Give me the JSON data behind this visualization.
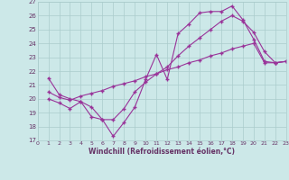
{
  "xlabel": "Windchill (Refroidissement éolien,°C)",
  "background_color": "#cce8e8",
  "grid_color": "#aacccc",
  "line_color": "#993399",
  "xmin": 0,
  "xmax": 23,
  "ymin": 17,
  "ymax": 27,
  "series1_x": [
    1,
    2,
    3,
    4,
    5,
    6,
    7,
    8,
    9,
    10,
    11,
    12,
    13,
    14,
    15,
    16,
    17,
    18,
    19,
    20,
    21,
    22,
    23
  ],
  "series1_y": [
    21.5,
    20.3,
    20.0,
    19.8,
    18.7,
    18.5,
    17.3,
    18.3,
    19.4,
    21.4,
    23.2,
    21.4,
    24.7,
    25.4,
    26.2,
    26.3,
    26.3,
    26.7,
    25.7,
    24.3,
    22.7,
    22.6,
    22.7
  ],
  "series2_x": [
    1,
    2,
    3,
    4,
    5,
    6,
    7,
    8,
    9,
    10,
    11,
    12,
    13,
    14,
    15,
    16,
    17,
    18,
    19,
    20,
    21,
    22,
    23
  ],
  "series2_y": [
    20.5,
    20.1,
    19.9,
    20.2,
    20.4,
    20.6,
    20.9,
    21.1,
    21.3,
    21.6,
    21.8,
    22.1,
    22.3,
    22.6,
    22.8,
    23.1,
    23.3,
    23.6,
    23.8,
    24.0,
    22.6,
    22.6,
    22.7
  ],
  "series3_x": [
    1,
    2,
    3,
    4,
    5,
    6,
    7,
    8,
    9,
    10,
    11,
    12,
    13,
    14,
    15,
    16,
    17,
    18,
    19,
    20,
    21,
    22,
    23
  ],
  "series3_y": [
    20.0,
    19.7,
    19.3,
    19.8,
    19.4,
    18.5,
    18.5,
    19.3,
    20.5,
    21.2,
    21.8,
    22.3,
    23.1,
    23.8,
    24.4,
    25.0,
    25.6,
    26.0,
    25.6,
    24.8,
    23.4,
    22.6,
    22.7
  ],
  "xtick_labels": [
    "0",
    "1",
    "2",
    "3",
    "4",
    "5",
    "6",
    "7",
    "8",
    "9",
    "10",
    "11",
    "12",
    "13",
    "14",
    "15",
    "16",
    "17",
    "18",
    "19",
    "20",
    "21",
    "2223"
  ],
  "ytick_labels": [
    "17",
    "18",
    "19",
    "20",
    "21",
    "22",
    "23",
    "24",
    "25",
    "26",
    "27"
  ]
}
